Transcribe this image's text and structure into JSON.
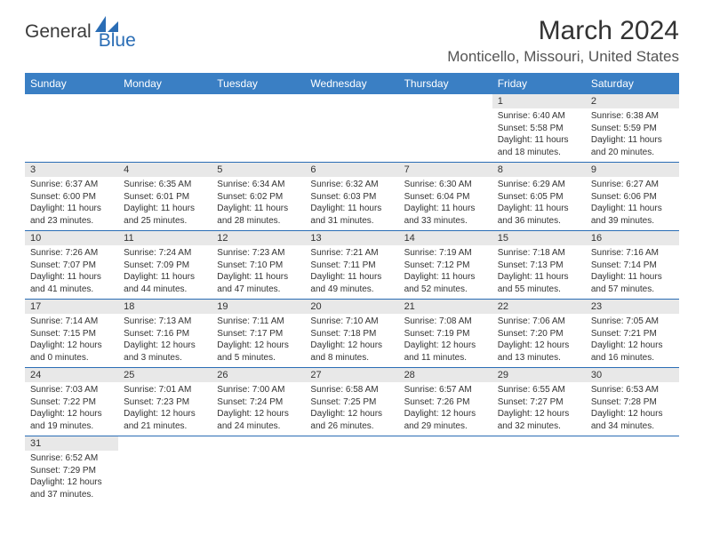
{
  "logo": {
    "text1": "General",
    "text2": "Blue",
    "shape_color": "#2a6db5"
  },
  "title": "March 2024",
  "location": "Monticello, Missouri, United States",
  "colors": {
    "header_bg": "#3a7fc4",
    "header_fg": "#ffffff",
    "daynum_bg": "#e8e8e8",
    "rule": "#2a6db5",
    "text": "#333333"
  },
  "weekdays": [
    "Sunday",
    "Monday",
    "Tuesday",
    "Wednesday",
    "Thursday",
    "Friday",
    "Saturday"
  ],
  "weeks": [
    [
      null,
      null,
      null,
      null,
      null,
      {
        "n": "1",
        "sunrise": "Sunrise: 6:40 AM",
        "sunset": "Sunset: 5:58 PM",
        "day1": "Daylight: 11 hours",
        "day2": "and 18 minutes."
      },
      {
        "n": "2",
        "sunrise": "Sunrise: 6:38 AM",
        "sunset": "Sunset: 5:59 PM",
        "day1": "Daylight: 11 hours",
        "day2": "and 20 minutes."
      }
    ],
    [
      {
        "n": "3",
        "sunrise": "Sunrise: 6:37 AM",
        "sunset": "Sunset: 6:00 PM",
        "day1": "Daylight: 11 hours",
        "day2": "and 23 minutes."
      },
      {
        "n": "4",
        "sunrise": "Sunrise: 6:35 AM",
        "sunset": "Sunset: 6:01 PM",
        "day1": "Daylight: 11 hours",
        "day2": "and 25 minutes."
      },
      {
        "n": "5",
        "sunrise": "Sunrise: 6:34 AM",
        "sunset": "Sunset: 6:02 PM",
        "day1": "Daylight: 11 hours",
        "day2": "and 28 minutes."
      },
      {
        "n": "6",
        "sunrise": "Sunrise: 6:32 AM",
        "sunset": "Sunset: 6:03 PM",
        "day1": "Daylight: 11 hours",
        "day2": "and 31 minutes."
      },
      {
        "n": "7",
        "sunrise": "Sunrise: 6:30 AM",
        "sunset": "Sunset: 6:04 PM",
        "day1": "Daylight: 11 hours",
        "day2": "and 33 minutes."
      },
      {
        "n": "8",
        "sunrise": "Sunrise: 6:29 AM",
        "sunset": "Sunset: 6:05 PM",
        "day1": "Daylight: 11 hours",
        "day2": "and 36 minutes."
      },
      {
        "n": "9",
        "sunrise": "Sunrise: 6:27 AM",
        "sunset": "Sunset: 6:06 PM",
        "day1": "Daylight: 11 hours",
        "day2": "and 39 minutes."
      }
    ],
    [
      {
        "n": "10",
        "sunrise": "Sunrise: 7:26 AM",
        "sunset": "Sunset: 7:07 PM",
        "day1": "Daylight: 11 hours",
        "day2": "and 41 minutes."
      },
      {
        "n": "11",
        "sunrise": "Sunrise: 7:24 AM",
        "sunset": "Sunset: 7:09 PM",
        "day1": "Daylight: 11 hours",
        "day2": "and 44 minutes."
      },
      {
        "n": "12",
        "sunrise": "Sunrise: 7:23 AM",
        "sunset": "Sunset: 7:10 PM",
        "day1": "Daylight: 11 hours",
        "day2": "and 47 minutes."
      },
      {
        "n": "13",
        "sunrise": "Sunrise: 7:21 AM",
        "sunset": "Sunset: 7:11 PM",
        "day1": "Daylight: 11 hours",
        "day2": "and 49 minutes."
      },
      {
        "n": "14",
        "sunrise": "Sunrise: 7:19 AM",
        "sunset": "Sunset: 7:12 PM",
        "day1": "Daylight: 11 hours",
        "day2": "and 52 minutes."
      },
      {
        "n": "15",
        "sunrise": "Sunrise: 7:18 AM",
        "sunset": "Sunset: 7:13 PM",
        "day1": "Daylight: 11 hours",
        "day2": "and 55 minutes."
      },
      {
        "n": "16",
        "sunrise": "Sunrise: 7:16 AM",
        "sunset": "Sunset: 7:14 PM",
        "day1": "Daylight: 11 hours",
        "day2": "and 57 minutes."
      }
    ],
    [
      {
        "n": "17",
        "sunrise": "Sunrise: 7:14 AM",
        "sunset": "Sunset: 7:15 PM",
        "day1": "Daylight: 12 hours",
        "day2": "and 0 minutes."
      },
      {
        "n": "18",
        "sunrise": "Sunrise: 7:13 AM",
        "sunset": "Sunset: 7:16 PM",
        "day1": "Daylight: 12 hours",
        "day2": "and 3 minutes."
      },
      {
        "n": "19",
        "sunrise": "Sunrise: 7:11 AM",
        "sunset": "Sunset: 7:17 PM",
        "day1": "Daylight: 12 hours",
        "day2": "and 5 minutes."
      },
      {
        "n": "20",
        "sunrise": "Sunrise: 7:10 AM",
        "sunset": "Sunset: 7:18 PM",
        "day1": "Daylight: 12 hours",
        "day2": "and 8 minutes."
      },
      {
        "n": "21",
        "sunrise": "Sunrise: 7:08 AM",
        "sunset": "Sunset: 7:19 PM",
        "day1": "Daylight: 12 hours",
        "day2": "and 11 minutes."
      },
      {
        "n": "22",
        "sunrise": "Sunrise: 7:06 AM",
        "sunset": "Sunset: 7:20 PM",
        "day1": "Daylight: 12 hours",
        "day2": "and 13 minutes."
      },
      {
        "n": "23",
        "sunrise": "Sunrise: 7:05 AM",
        "sunset": "Sunset: 7:21 PM",
        "day1": "Daylight: 12 hours",
        "day2": "and 16 minutes."
      }
    ],
    [
      {
        "n": "24",
        "sunrise": "Sunrise: 7:03 AM",
        "sunset": "Sunset: 7:22 PM",
        "day1": "Daylight: 12 hours",
        "day2": "and 19 minutes."
      },
      {
        "n": "25",
        "sunrise": "Sunrise: 7:01 AM",
        "sunset": "Sunset: 7:23 PM",
        "day1": "Daylight: 12 hours",
        "day2": "and 21 minutes."
      },
      {
        "n": "26",
        "sunrise": "Sunrise: 7:00 AM",
        "sunset": "Sunset: 7:24 PM",
        "day1": "Daylight: 12 hours",
        "day2": "and 24 minutes."
      },
      {
        "n": "27",
        "sunrise": "Sunrise: 6:58 AM",
        "sunset": "Sunset: 7:25 PM",
        "day1": "Daylight: 12 hours",
        "day2": "and 26 minutes."
      },
      {
        "n": "28",
        "sunrise": "Sunrise: 6:57 AM",
        "sunset": "Sunset: 7:26 PM",
        "day1": "Daylight: 12 hours",
        "day2": "and 29 minutes."
      },
      {
        "n": "29",
        "sunrise": "Sunrise: 6:55 AM",
        "sunset": "Sunset: 7:27 PM",
        "day1": "Daylight: 12 hours",
        "day2": "and 32 minutes."
      },
      {
        "n": "30",
        "sunrise": "Sunrise: 6:53 AM",
        "sunset": "Sunset: 7:28 PM",
        "day1": "Daylight: 12 hours",
        "day2": "and 34 minutes."
      }
    ],
    [
      {
        "n": "31",
        "sunrise": "Sunrise: 6:52 AM",
        "sunset": "Sunset: 7:29 PM",
        "day1": "Daylight: 12 hours",
        "day2": "and 37 minutes."
      },
      null,
      null,
      null,
      null,
      null,
      null
    ]
  ]
}
